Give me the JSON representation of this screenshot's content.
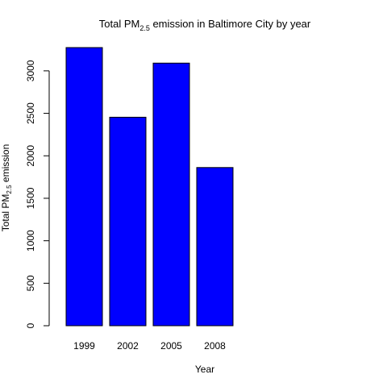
{
  "chart_data": {
    "type": "bar",
    "title": {
      "prefix": "Total PM",
      "subscript": "2.5",
      "suffix": " emission in Baltimore City by year"
    },
    "xlabel": "Year",
    "ylabel": {
      "prefix": "Total PM",
      "subscript": "2.5",
      "suffix": " emission"
    },
    "categories": [
      "1999",
      "2002",
      "2005",
      "2008"
    ],
    "values": [
      3274,
      2454,
      3091,
      1862
    ],
    "ylim": [
      0,
      3274
    ],
    "yticks": [
      0,
      500,
      1000,
      1500,
      2000,
      2500,
      3000
    ],
    "bar_color": "#0000FF",
    "bar_border": "#000000",
    "grid": false,
    "legend": "none"
  }
}
